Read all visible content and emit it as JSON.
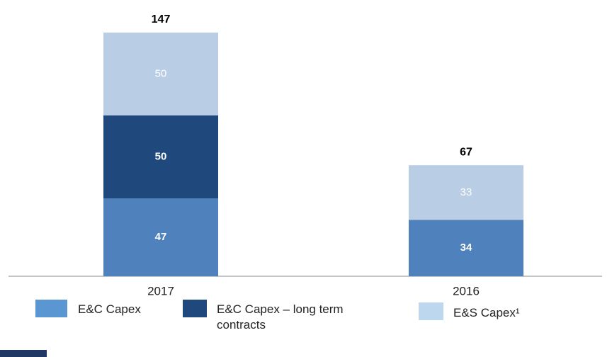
{
  "chart_data": {
    "type": "stacked-bar",
    "categories": [
      "2017",
      "2016"
    ],
    "series": [
      {
        "name": "E&C Capex",
        "color": "#4f81bd",
        "legend_color": "#5a96d2",
        "values": [
          47,
          34
        ]
      },
      {
        "name": "E&C Capex – long term contracts",
        "color": "#1f497d",
        "legend_color": "#1f497d",
        "values": [
          50,
          null
        ]
      },
      {
        "name": "E&S Capex¹",
        "color": "#b9cde5",
        "legend_color": "#bdd7ee",
        "values": [
          50,
          33
        ]
      }
    ],
    "totals": [
      147,
      67
    ]
  }
}
